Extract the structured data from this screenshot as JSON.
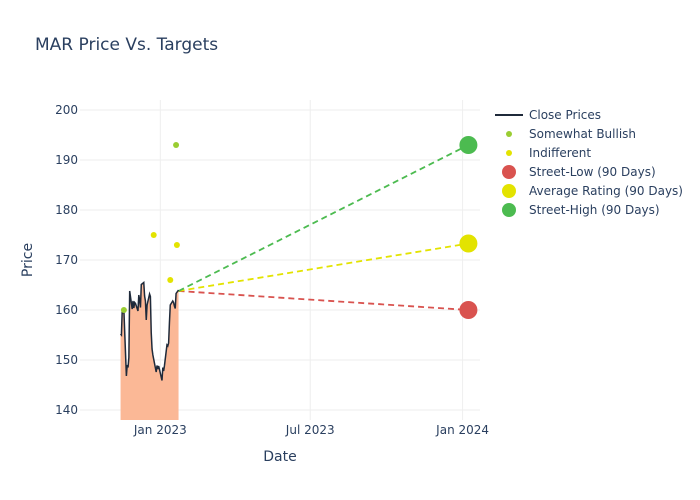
{
  "chart_data": {
    "type": "line",
    "title": "MAR Price Vs. Targets",
    "xlabel": "Date",
    "ylabel": "Price",
    "ylim": [
      138,
      202
    ],
    "xlim": [
      "2022-09-26",
      "2024-01-22"
    ],
    "yticks": [
      140,
      150,
      160,
      170,
      180,
      190,
      200
    ],
    "xticks": [
      {
        "date": "2023-01-01",
        "label": "Jan 2023"
      },
      {
        "date": "2023-07-01",
        "label": "Jul 2023"
      },
      {
        "date": "2024-01-01",
        "label": "Jan 2024"
      }
    ],
    "grid": true,
    "legend_position": "right",
    "series": [
      {
        "name": "Close Prices",
        "kind": "line",
        "color": "#1f2a3a",
        "fill_color": "#fbb896",
        "points": [
          [
            "2022-11-14",
            155.2
          ],
          [
            "2022-11-15",
            155.0
          ],
          [
            "2022-11-16",
            160.0
          ],
          [
            "2022-11-17",
            159.6
          ],
          [
            "2022-11-18",
            159.9
          ],
          [
            "2022-11-21",
            146.8
          ],
          [
            "2022-11-22",
            149.0
          ],
          [
            "2022-11-23",
            148.5
          ],
          [
            "2022-11-24",
            150.5
          ],
          [
            "2022-11-25",
            163.8
          ],
          [
            "2022-11-28",
            160.2
          ],
          [
            "2022-11-29",
            161.8
          ],
          [
            "2022-11-30",
            160.4
          ],
          [
            "2022-12-01",
            161.5
          ],
          [
            "2022-12-02",
            161.3
          ],
          [
            "2022-12-05",
            159.8
          ],
          [
            "2022-12-06",
            163.0
          ],
          [
            "2022-12-07",
            162.0
          ],
          [
            "2022-12-08",
            160.5
          ],
          [
            "2022-12-09",
            165.1
          ],
          [
            "2022-12-12",
            165.5
          ],
          [
            "2022-12-13",
            162.8
          ],
          [
            "2022-12-14",
            161.8
          ],
          [
            "2022-12-15",
            158.0
          ],
          [
            "2022-12-16",
            161.0
          ],
          [
            "2022-12-19",
            163.2
          ],
          [
            "2022-12-20",
            162.7
          ],
          [
            "2022-12-21",
            155.5
          ],
          [
            "2022-12-22",
            152.2
          ],
          [
            "2022-12-23",
            151.0
          ],
          [
            "2022-12-27",
            147.6
          ],
          [
            "2022-12-28",
            148.9
          ],
          [
            "2022-12-29",
            148.2
          ],
          [
            "2022-12-30",
            148.8
          ],
          [
            "2023-01-03",
            145.9
          ],
          [
            "2023-01-04",
            148.5
          ],
          [
            "2023-01-05",
            147.8
          ],
          [
            "2023-01-06",
            148.9
          ],
          [
            "2023-01-09",
            153.0
          ],
          [
            "2023-01-10",
            152.8
          ],
          [
            "2023-01-11",
            153.4
          ],
          [
            "2023-01-12",
            157.5
          ],
          [
            "2023-01-13",
            161.0
          ],
          [
            "2023-01-16",
            161.8
          ],
          [
            "2023-01-17",
            161.5
          ],
          [
            "2023-01-18",
            160.8
          ],
          [
            "2023-01-19",
            160.3
          ],
          [
            "2023-01-20",
            163.3
          ],
          [
            "2023-01-23",
            164.0
          ]
        ]
      },
      {
        "name": "Somewhat Bullish",
        "kind": "markers",
        "color": "#9acd32",
        "points": [
          [
            "2022-11-18",
            160.0
          ],
          [
            "2023-01-20",
            193.0
          ]
        ]
      },
      {
        "name": "Indifferent",
        "kind": "markers",
        "color": "#e3e300",
        "points": [
          [
            "2022-12-24",
            175.0
          ],
          [
            "2023-01-13",
            166.0
          ],
          [
            "2023-01-21",
            173.0
          ]
        ]
      },
      {
        "name": "Street-Low (90 Days)",
        "kind": "target",
        "color": "#d9534f",
        "from": [
          "2023-01-23",
          163.8
        ],
        "to": [
          "2024-01-08",
          160.0
        ]
      },
      {
        "name": "Average Rating (90 Days)",
        "kind": "target",
        "color": "#e3e300",
        "from": [
          "2023-01-23",
          163.8
        ],
        "to": [
          "2024-01-08",
          173.3
        ]
      },
      {
        "name": "Street-High (90 Days)",
        "kind": "target",
        "color": "#4cbb50",
        "from": [
          "2023-01-23",
          163.8
        ],
        "to": [
          "2024-01-08",
          193.0
        ]
      }
    ]
  }
}
